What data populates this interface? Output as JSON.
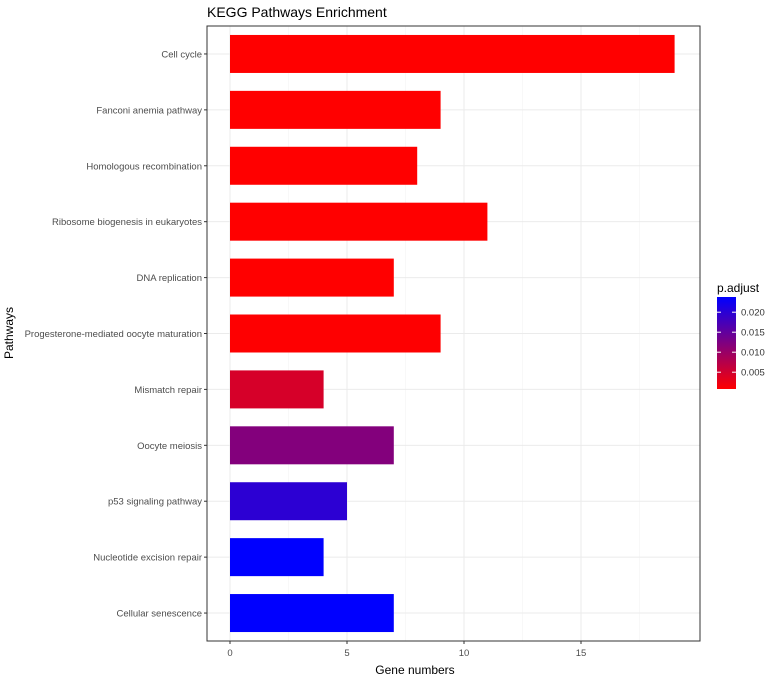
{
  "chart_data": {
    "type": "bar",
    "orientation": "horizontal",
    "title": "KEGG Pathways Enrichment",
    "xlabel": "Gene numbers",
    "ylabel": "Pathways",
    "xlim": [
      -1,
      20
    ],
    "xticks": [
      0,
      5,
      10,
      15
    ],
    "grid": true,
    "categories": [
      "Cell cycle",
      "Fanconi anemia pathway",
      "Homologous recombination",
      "Ribosome biogenesis in eukaryotes",
      "DNA replication",
      "Progesterone-mediated oocyte maturation",
      "Mismatch repair",
      "Oocyte meiosis",
      "p53 signaling pathway",
      "Nucleotide excision repair",
      "Cellular senescence"
    ],
    "values": [
      19,
      9,
      8,
      11,
      7,
      9,
      4,
      7,
      5,
      4,
      7
    ],
    "p_adjust": [
      0.0008,
      0.0008,
      0.0008,
      0.0008,
      0.0008,
      0.0009,
      0.0045,
      0.012,
      0.0198,
      0.0238,
      0.0238
    ],
    "legend": {
      "title": "p.adjust",
      "position": "right",
      "range": [
        0.0008,
        0.0238
      ],
      "ticks": [
        0.02,
        0.015,
        0.01,
        0.005
      ],
      "tick_labels": [
        "0.020",
        "0.015",
        "0.010",
        "0.005"
      ],
      "low_color": "#FF0000",
      "high_color": "#0000FF"
    }
  }
}
